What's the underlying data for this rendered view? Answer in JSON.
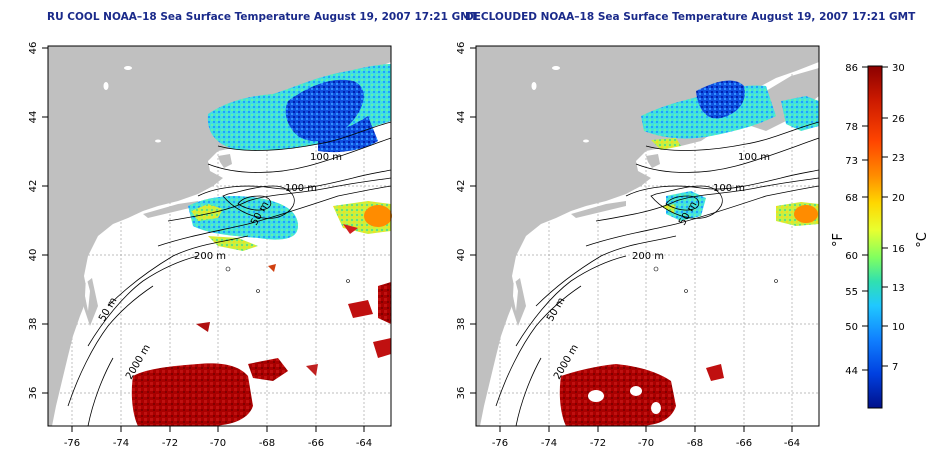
{
  "maps": [
    {
      "id": "left",
      "title": "RU COOL NOAA–18 Sea Surface Temperature August 19, 2007 17:21 GMT",
      "x_ticks": [
        "-76",
        "-74",
        "-72",
        "-70",
        "-68",
        "-66",
        "-64"
      ],
      "y_ticks": [
        "46",
        "44",
        "42",
        "40",
        "38",
        "36"
      ],
      "contour_labels": [
        "100 m",
        "100 m",
        "50 m",
        "200 m",
        "50 m",
        "2000 m"
      ]
    },
    {
      "id": "right",
      "title": "DECLOUDED NOAA–18 Sea Surface Temperature August 19, 2007 17:21 GMT",
      "x_ticks": [
        "-76",
        "-74",
        "-72",
        "-70",
        "-68",
        "-66",
        "-64"
      ],
      "y_ticks": [
        "46",
        "44",
        "42",
        "40",
        "38",
        "36"
      ],
      "contour_labels": [
        "100 m",
        "100 m",
        "50 m",
        "200 m",
        "50 m",
        "2000 m"
      ]
    }
  ],
  "colorbar": {
    "fahrenheit_ticks": [
      "86",
      "78",
      "73",
      "68",
      "60",
      "55",
      "50",
      "44"
    ],
    "celsius_ticks": [
      "30",
      "26",
      "23",
      "20",
      "16",
      "13",
      "10",
      "7"
    ],
    "f_unit": "°F",
    "c_unit": "°C",
    "colors": [
      "#8b0000",
      "#cc1a00",
      "#ff4500",
      "#ff8c00",
      "#ffd700",
      "#e8ff30",
      "#80ff60",
      "#30e0b0",
      "#20c8ff",
      "#1080ff",
      "#0040e0",
      "#00108a"
    ]
  },
  "colors": {
    "land": "#c0c0c0",
    "ocean": "#ffffff",
    "title": "#1a2a8a",
    "grid": "#a8a8a8"
  }
}
